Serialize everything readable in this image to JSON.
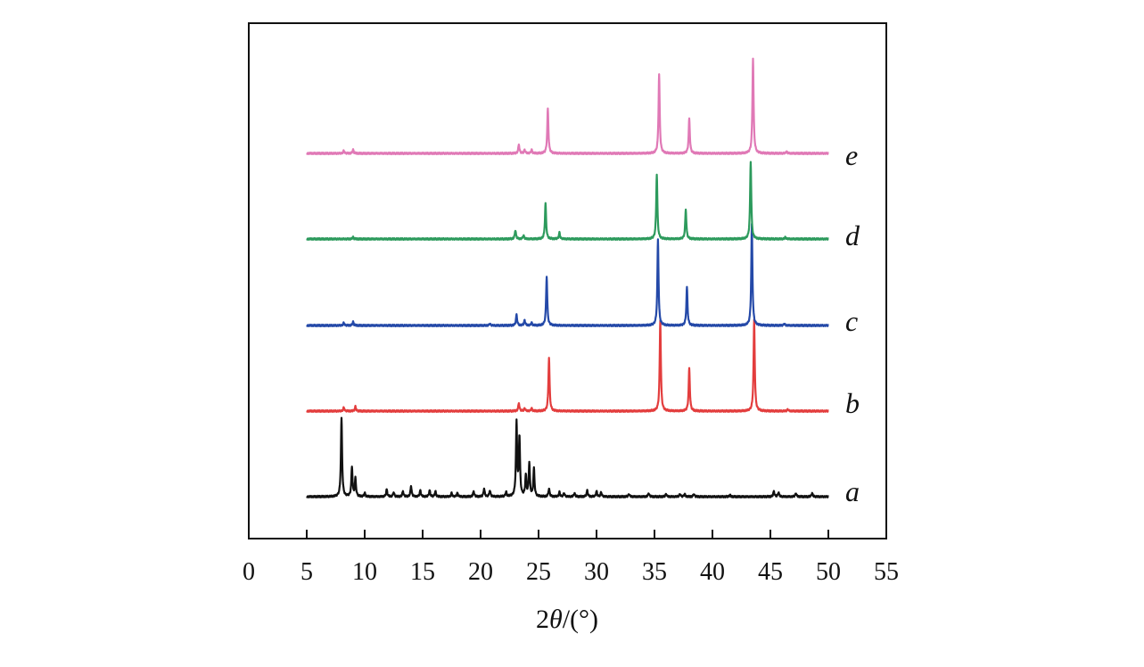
{
  "chart_data": {
    "type": "line",
    "title": "",
    "xlabel_prefix": "2",
    "xlabel_theta": "θ",
    "xlabel_unit": "/(°)",
    "ylabel": "",
    "xlim": [
      0,
      55
    ],
    "xticks": [
      0,
      5,
      10,
      15,
      20,
      25,
      30,
      35,
      40,
      45,
      50,
      55
    ],
    "tick_labels": [
      "0",
      "5",
      "10",
      "15",
      "20",
      "25",
      "30",
      "35",
      "40",
      "45",
      "50",
      "55"
    ],
    "y_axis_ticks": false,
    "grid": false,
    "legend": "inline labels at right end of each trace",
    "series": [
      {
        "name": "a",
        "label": "a",
        "color": "#111111",
        "baseline": 0,
        "range": [
          5,
          50
        ],
        "peaks": [
          [
            8.0,
            88
          ],
          [
            8.9,
            33
          ],
          [
            9.2,
            20
          ],
          [
            10.0,
            4
          ],
          [
            11.9,
            8
          ],
          [
            12.5,
            5
          ],
          [
            13.3,
            6
          ],
          [
            14.0,
            12
          ],
          [
            14.8,
            7
          ],
          [
            15.6,
            7
          ],
          [
            16.1,
            6
          ],
          [
            17.5,
            4
          ],
          [
            18.0,
            4
          ],
          [
            19.4,
            6
          ],
          [
            20.3,
            9
          ],
          [
            20.8,
            7
          ],
          [
            22.2,
            5
          ],
          [
            23.1,
            82
          ],
          [
            23.35,
            66
          ],
          [
            23.9,
            23
          ],
          [
            24.2,
            37
          ],
          [
            24.6,
            31
          ],
          [
            25.9,
            9
          ],
          [
            26.8,
            5
          ],
          [
            27.2,
            4
          ],
          [
            28.1,
            4
          ],
          [
            29.2,
            7
          ],
          [
            30.0,
            6
          ],
          [
            30.4,
            5
          ],
          [
            32.8,
            3
          ],
          [
            34.5,
            4
          ],
          [
            36.0,
            3
          ],
          [
            37.2,
            3
          ],
          [
            37.6,
            3
          ],
          [
            38.4,
            3
          ],
          [
            41.5,
            2
          ],
          [
            45.3,
            6
          ],
          [
            45.7,
            5
          ],
          [
            47.2,
            4
          ],
          [
            48.6,
            4
          ]
        ]
      },
      {
        "name": "b",
        "label": "b",
        "color": "#e33d3d",
        "baseline": 0,
        "range": [
          5,
          50
        ],
        "peaks": [
          [
            8.2,
            4
          ],
          [
            9.2,
            5
          ],
          [
            23.3,
            9
          ],
          [
            23.8,
            3
          ],
          [
            24.4,
            3
          ],
          [
            25.9,
            60
          ],
          [
            35.5,
            102
          ],
          [
            38.0,
            48
          ],
          [
            43.6,
            102
          ],
          [
            46.5,
            2
          ]
        ]
      },
      {
        "name": "c",
        "label": "c",
        "color": "#2449a8",
        "baseline": 0,
        "range": [
          5,
          50
        ],
        "peaks": [
          [
            8.2,
            3
          ],
          [
            9.0,
            4
          ],
          [
            20.8,
            2
          ],
          [
            23.1,
            12
          ],
          [
            23.8,
            6
          ],
          [
            24.4,
            3
          ],
          [
            25.7,
            55
          ],
          [
            35.3,
            96
          ],
          [
            37.8,
            43
          ],
          [
            43.4,
            113
          ],
          [
            46.2,
            2
          ]
        ]
      },
      {
        "name": "d",
        "label": "d",
        "color": "#2c9a5c",
        "baseline": 0,
        "range": [
          5,
          50
        ],
        "peaks": [
          [
            9.0,
            2
          ],
          [
            23.0,
            10
          ],
          [
            23.7,
            4
          ],
          [
            25.6,
            40
          ],
          [
            26.8,
            7
          ],
          [
            35.2,
            73
          ],
          [
            37.7,
            33
          ],
          [
            43.3,
            87
          ],
          [
            46.3,
            2
          ]
        ]
      },
      {
        "name": "e",
        "label": "e",
        "color": "#e079b6",
        "baseline": 0,
        "range": [
          5,
          50
        ],
        "peaks": [
          [
            8.2,
            3
          ],
          [
            9.0,
            4
          ],
          [
            23.3,
            10
          ],
          [
            23.8,
            4
          ],
          [
            24.4,
            4
          ],
          [
            25.8,
            50
          ],
          [
            35.4,
            89
          ],
          [
            38.0,
            39
          ],
          [
            43.5,
            107
          ],
          [
            46.4,
            2
          ]
        ]
      }
    ]
  }
}
